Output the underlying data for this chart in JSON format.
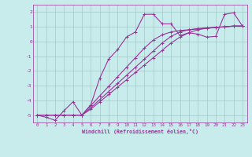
{
  "bg_color": "#c8ecec",
  "line_color": "#993399",
  "grid_color": "#9bbfbf",
  "xlim": [
    -0.5,
    23.5
  ],
  "ylim": [
    -5.5,
    2.5
  ],
  "xticks": [
    0,
    1,
    2,
    3,
    4,
    5,
    6,
    7,
    8,
    9,
    10,
    11,
    12,
    13,
    14,
    15,
    16,
    17,
    18,
    19,
    20,
    21,
    22,
    23
  ],
  "yticks": [
    -5,
    -4,
    -3,
    -2,
    -1,
    0,
    1,
    2
  ],
  "xlabel": "Windchill (Refroidissement éolien,°C)",
  "line1_x": [
    0,
    1,
    2,
    3,
    4,
    5,
    6,
    7,
    8,
    9,
    10,
    11,
    12,
    13,
    14,
    15,
    16,
    17,
    18,
    19,
    20,
    21,
    22,
    23
  ],
  "line1_y": [
    -5.0,
    -5.15,
    -5.35,
    -4.7,
    -4.1,
    -5.0,
    -4.3,
    -2.5,
    -1.2,
    -0.55,
    0.3,
    0.65,
    1.85,
    1.85,
    1.2,
    1.2,
    0.4,
    0.6,
    0.5,
    0.3,
    0.35,
    1.85,
    1.95,
    1.05
  ],
  "line2_x": [
    0,
    1,
    2,
    3,
    4,
    5,
    6,
    7,
    8,
    9,
    10,
    11,
    12,
    13,
    14,
    15,
    16,
    17,
    18,
    19,
    20,
    21,
    22,
    23
  ],
  "line2_y": [
    -5.0,
    -5.0,
    -5.0,
    -5.0,
    -5.0,
    -5.0,
    -4.35,
    -3.7,
    -3.05,
    -2.4,
    -1.75,
    -1.1,
    -0.45,
    0.1,
    0.45,
    0.65,
    0.75,
    0.8,
    0.85,
    0.9,
    0.95,
    1.0,
    1.05,
    1.05
  ],
  "line3_x": [
    0,
    1,
    2,
    3,
    4,
    5,
    6,
    7,
    8,
    9,
    10,
    11,
    12,
    13,
    14,
    15,
    16,
    17,
    18,
    19,
    20,
    21,
    22,
    23
  ],
  "line3_y": [
    -5.0,
    -5.0,
    -5.0,
    -5.0,
    -5.0,
    -5.0,
    -4.5,
    -3.95,
    -3.4,
    -2.85,
    -2.3,
    -1.75,
    -1.2,
    -0.65,
    -0.1,
    0.35,
    0.65,
    0.8,
    0.88,
    0.93,
    0.97,
    1.0,
    1.05,
    1.05
  ],
  "line4_x": [
    0,
    1,
    2,
    3,
    4,
    5,
    6,
    7,
    8,
    9,
    10,
    11,
    12,
    13,
    14,
    15,
    16,
    17,
    18,
    19,
    20,
    21,
    22,
    23
  ],
  "line4_y": [
    -5.0,
    -5.0,
    -5.0,
    -5.0,
    -5.0,
    -5.0,
    -4.6,
    -4.1,
    -3.6,
    -3.1,
    -2.6,
    -2.1,
    -1.6,
    -1.1,
    -0.6,
    -0.1,
    0.3,
    0.6,
    0.8,
    0.9,
    0.95,
    1.0,
    1.05,
    1.05
  ]
}
